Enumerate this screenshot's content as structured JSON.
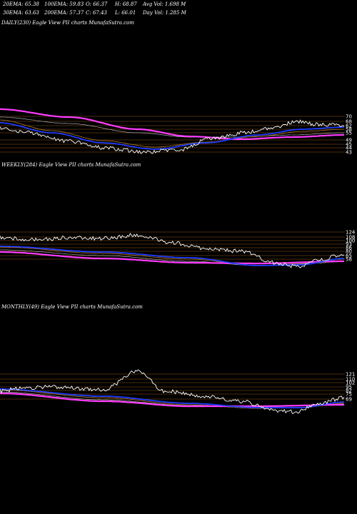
{
  "header": {
    "ema20": "20EMA: 65.38",
    "ema100": "100EMA: 59.83",
    "open": "O: 66.37",
    "high": "H: 68.87",
    "avgvol": "Avg Vol: 1.698 M",
    "ema30": "30EMA: 63.63",
    "ema200": "200EMA: 57.37",
    "close": "C: 67.43",
    "low": "L: 66.01",
    "dayvol": "Day Vol: 1.285 M"
  },
  "colors": {
    "background": "#000000",
    "price": "#ffffff",
    "ema_fast": "#1e3cff",
    "ema_slow": "#ff3cff",
    "ema_mid": "#b07a2a",
    "ema_light": "#c8c8c8",
    "grid": "#b06a20"
  },
  "chart_data": [
    {
      "type": "line",
      "title": "DAILY(230) Eagle   View  PII charts MunafaSutra.com",
      "ticks": [
        "70",
        "68",
        "62",
        "58",
        "55",
        "49",
        "45",
        "44",
        "43"
      ],
      "series_names": [
        "price",
        "20EMA",
        "30EMA",
        "100EMA",
        "200EMA"
      ]
    },
    {
      "type": "line",
      "title": "WEEKLY(284) Eagle   View  PII charts MunafaSutra.com",
      "ticks": [
        "124",
        "108",
        "100",
        "93",
        "86",
        "80",
        "65",
        "58"
      ],
      "series_names": [
        "price",
        "20EMA",
        "30EMA",
        "100EMA",
        "200EMA"
      ]
    },
    {
      "type": "line",
      "title": "MONTHLY(49) Eagle   View  PII charts MunafaSutra.com",
      "ticks": [
        "121",
        "110",
        "102",
        "95",
        "82",
        "75",
        "69"
      ],
      "series_names": [
        "price",
        "20EMA",
        "30EMA",
        "100EMA",
        "200EMA"
      ]
    }
  ]
}
